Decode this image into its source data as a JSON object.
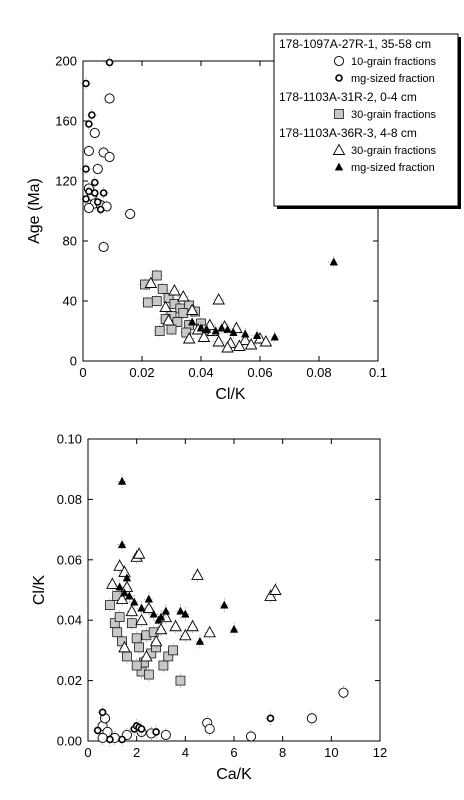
{
  "chart_data": [
    {
      "type": "scatter",
      "title": "",
      "xlabel": "Cl/K",
      "ylabel": "Age (Ma)",
      "xlim": [
        0,
        0.1
      ],
      "ylim": [
        0,
        200
      ],
      "xticks": [
        "0",
        "0.02",
        "0.04",
        "0.06",
        "0.08",
        "0.1"
      ],
      "yticks": [
        "0",
        "40",
        "80",
        "120",
        "160",
        "200"
      ],
      "legend": {
        "placement": "top-right",
        "groups": [
          {
            "title": "178-1097A-27R-1, 35-58 cm",
            "entries": [
              {
                "marker": "open-circle-large",
                "label": "10-grain fractions"
              },
              {
                "marker": "open-circle-bold",
                "label": "mg-sized fraction"
              }
            ]
          },
          {
            "title": "178-1103A-31R-2, 0-4 cm",
            "entries": [
              {
                "marker": "gray-square",
                "label": "30-grain fractions"
              }
            ]
          },
          {
            "title": "178-1103A-36R-3, 4-8 cm",
            "entries": [
              {
                "marker": "open-triangle",
                "label": "30-grain fractions"
              },
              {
                "marker": "filled-triangle",
                "label": "mg-sized fraction"
              }
            ]
          }
        ]
      },
      "series": [
        {
          "marker": "open-circle-large",
          "points": [
            [
              0.009,
              175
            ],
            [
              0.004,
              152
            ],
            [
              0.002,
              140
            ],
            [
              0.007,
              139
            ],
            [
              0.009,
              136
            ],
            [
              0.005,
              128
            ],
            [
              0.002,
              115
            ],
            [
              0.003,
              110
            ],
            [
              0.004,
              105
            ],
            [
              0.006,
              104
            ],
            [
              0.002,
              102
            ],
            [
              0.008,
              103
            ],
            [
              0.007,
              76
            ],
            [
              0.016,
              98
            ]
          ]
        },
        {
          "marker": "open-circle-bold",
          "points": [
            [
              0.009,
              199
            ],
            [
              0.001,
              185
            ],
            [
              0.003,
              164
            ],
            [
              0.002,
              158
            ],
            [
              0.001,
              128
            ],
            [
              0.004,
              119
            ],
            [
              0.002,
              113
            ],
            [
              0.004,
              112
            ],
            [
              0.007,
              112
            ],
            [
              0.001,
              108
            ],
            [
              0.005,
              106
            ],
            [
              0.006,
              101
            ]
          ]
        },
        {
          "marker": "gray-square",
          "points": [
            [
              0.025,
              57
            ],
            [
              0.021,
              51
            ],
            [
              0.027,
              48
            ],
            [
              0.022,
              39
            ],
            [
              0.025,
              40
            ],
            [
              0.029,
              42
            ],
            [
              0.031,
              38
            ],
            [
              0.033,
              35
            ],
            [
              0.036,
              37
            ],
            [
              0.03,
              30
            ],
            [
              0.034,
              32
            ],
            [
              0.038,
              33
            ],
            [
              0.028,
              28
            ],
            [
              0.032,
              26
            ],
            [
              0.036,
              24
            ],
            [
              0.04,
              25
            ],
            [
              0.026,
              20
            ],
            [
              0.03,
              21
            ],
            [
              0.035,
              19
            ],
            [
              0.042,
              21
            ]
          ]
        },
        {
          "marker": "open-triangle",
          "points": [
            [
              0.023,
              52
            ],
            [
              0.031,
              47
            ],
            [
              0.034,
              43
            ],
            [
              0.046,
              41
            ],
            [
              0.028,
              36
            ],
            [
              0.037,
              34
            ],
            [
              0.029,
              27
            ],
            [
              0.039,
              21
            ],
            [
              0.044,
              20
            ],
            [
              0.048,
              23
            ],
            [
              0.052,
              22
            ],
            [
              0.036,
              15
            ],
            [
              0.041,
              16
            ],
            [
              0.046,
              13
            ],
            [
              0.05,
              12
            ],
            [
              0.055,
              14
            ],
            [
              0.057,
              11
            ],
            [
              0.06,
              15
            ],
            [
              0.062,
              13
            ],
            [
              0.049,
              9
            ],
            [
              0.053,
              10
            ],
            [
              0.043,
              24
            ]
          ]
        },
        {
          "marker": "filled-triangle",
          "points": [
            [
              0.085,
              66
            ],
            [
              0.037,
              26
            ],
            [
              0.04,
              22
            ],
            [
              0.042,
              21
            ],
            [
              0.045,
              20
            ],
            [
              0.047,
              22
            ],
            [
              0.049,
              21
            ],
            [
              0.051,
              19
            ],
            [
              0.055,
              18
            ],
            [
              0.059,
              17
            ],
            [
              0.065,
              16
            ]
          ]
        }
      ]
    },
    {
      "type": "scatter",
      "title": "",
      "xlabel": "Ca/K",
      "ylabel": "Cl/K",
      "xlim": [
        0,
        12
      ],
      "ylim": [
        0,
        0.1
      ],
      "xticks": [
        "0",
        "2",
        "4",
        "6",
        "8",
        "10",
        "12"
      ],
      "yticks": [
        "0.00",
        "0.02",
        "0.04",
        "0.06",
        "0.08",
        "0.10"
      ],
      "series": [
        {
          "marker": "open-circle-large",
          "points": [
            [
              0.6,
              0.005
            ],
            [
              0.8,
              0.003
            ],
            [
              0.6,
              0.001
            ],
            [
              1.1,
              0.001
            ],
            [
              1.6,
              0.002
            ],
            [
              2.2,
              0.003
            ],
            [
              2.6,
              0.0025
            ],
            [
              3.2,
              0.002
            ],
            [
              4.9,
              0.006
            ],
            [
              5.0,
              0.004
            ],
            [
              6.7,
              0.0015
            ],
            [
              9.2,
              0.0075
            ],
            [
              10.5,
              0.016
            ],
            [
              0.7,
              0.0075
            ]
          ]
        },
        {
          "marker": "open-circle-bold",
          "points": [
            [
              0.6,
              0.0095
            ],
            [
              0.4,
              0.0035
            ],
            [
              0.9,
              0.0005
            ],
            [
              1.4,
              0.0005
            ],
            [
              1.9,
              0.004
            ],
            [
              2.0,
              0.005
            ],
            [
              2.1,
              0.0045
            ],
            [
              2.2,
              0.004
            ],
            [
              2.8,
              0.003
            ],
            [
              7.5,
              0.0075
            ]
          ]
        },
        {
          "marker": "gray-square",
          "points": [
            [
              0.9,
              0.045
            ],
            [
              1.1,
              0.039
            ],
            [
              1.2,
              0.036
            ],
            [
              1.3,
              0.041
            ],
            [
              1.4,
              0.033
            ],
            [
              1.6,
              0.028
            ],
            [
              1.8,
              0.039
            ],
            [
              2.0,
              0.034
            ],
            [
              2.1,
              0.031
            ],
            [
              2.2,
              0.023
            ],
            [
              2.3,
              0.026
            ],
            [
              2.4,
              0.035
            ],
            [
              2.6,
              0.029
            ],
            [
              2.8,
              0.031
            ],
            [
              3.1,
              0.025
            ],
            [
              3.3,
              0.028
            ],
            [
              3.8,
              0.02
            ],
            [
              2.0,
              0.025
            ],
            [
              1.2,
              0.048
            ],
            [
              2.7,
              0.036
            ],
            [
              3.5,
              0.03
            ],
            [
              2.5,
              0.022
            ]
          ]
        },
        {
          "marker": "open-triangle",
          "points": [
            [
              1.0,
              0.052
            ],
            [
              1.3,
              0.058
            ],
            [
              1.5,
              0.056
            ],
            [
              2.0,
              0.061
            ],
            [
              2.1,
              0.062
            ],
            [
              1.4,
              0.047
            ],
            [
              1.8,
              0.043
            ],
            [
              2.2,
              0.04
            ],
            [
              2.5,
              0.044
            ],
            [
              2.8,
              0.033
            ],
            [
              3.0,
              0.037
            ],
            [
              3.2,
              0.041
            ],
            [
              3.6,
              0.038
            ],
            [
              4.0,
              0.035
            ],
            [
              4.3,
              0.038
            ],
            [
              4.5,
              0.055
            ],
            [
              5.0,
              0.036
            ],
            [
              7.5,
              0.048
            ],
            [
              7.7,
              0.05
            ],
            [
              1.6,
              0.051
            ],
            [
              2.4,
              0.028
            ],
            [
              1.5,
              0.031
            ]
          ]
        },
        {
          "marker": "filled-triangle",
          "points": [
            [
              1.4,
              0.086
            ],
            [
              1.4,
              0.065
            ],
            [
              1.3,
              0.051
            ],
            [
              1.5,
              0.049
            ],
            [
              1.6,
              0.054
            ],
            [
              1.7,
              0.048
            ],
            [
              1.9,
              0.046
            ],
            [
              2.2,
              0.044
            ],
            [
              2.5,
              0.047
            ],
            [
              2.7,
              0.042
            ],
            [
              2.9,
              0.04
            ],
            [
              3.2,
              0.043
            ],
            [
              3.0,
              0.041
            ],
            [
              3.8,
              0.043
            ],
            [
              4.0,
              0.042
            ],
            [
              5.6,
              0.045
            ],
            [
              6.0,
              0.037
            ],
            [
              4.6,
              0.033
            ]
          ]
        }
      ]
    }
  ]
}
